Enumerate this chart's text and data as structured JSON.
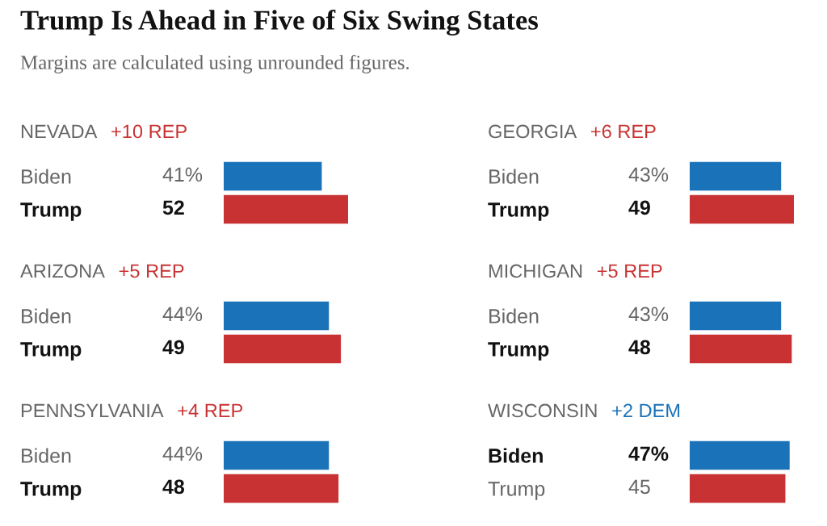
{
  "chart_data": [
    {
      "type": "other",
      "title": "Trump Is Ahead in Five of Six Swing States",
      "subtitle": "Margins are calculated using unrounded figures."
    },
    {
      "type": "bar",
      "orientation": "horizontal",
      "title": "NEVADA",
      "annotations": [
        "+10 REP"
      ],
      "categories": [
        "Biden",
        "Trump"
      ],
      "values": [
        41,
        52
      ],
      "value_labels": [
        "41%",
        "52"
      ],
      "colors": [
        "#1a72b8",
        "#c83232"
      ],
      "tick_labels": "y"
    },
    {
      "type": "bar",
      "orientation": "horizontal",
      "title": "GEORGIA",
      "annotations": [
        "+6 REP"
      ],
      "categories": [
        "Biden",
        "Trump"
      ],
      "values": [
        43,
        49
      ],
      "value_labels": [
        "43%",
        "49"
      ],
      "colors": [
        "#1a72b8",
        "#c83232"
      ],
      "tick_labels": "y"
    },
    {
      "type": "bar",
      "orientation": "horizontal",
      "title": "ARIZONA",
      "annotations": [
        "+5 REP"
      ],
      "categories": [
        "Biden",
        "Trump"
      ],
      "values": [
        44,
        49
      ],
      "value_labels": [
        "44%",
        "49"
      ],
      "colors": [
        "#1a72b8",
        "#c83232"
      ],
      "tick_labels": "y"
    },
    {
      "type": "bar",
      "orientation": "horizontal",
      "title": "MICHIGAN",
      "annotations": [
        "+5 REP"
      ],
      "categories": [
        "Biden",
        "Trump"
      ],
      "values": [
        43,
        48
      ],
      "value_labels": [
        "43%",
        "48"
      ],
      "colors": [
        "#1a72b8",
        "#c83232"
      ],
      "tick_labels": "y"
    },
    {
      "type": "bar",
      "orientation": "horizontal",
      "title": "PENNSYLVANIA",
      "annotations": [
        "+4 REP"
      ],
      "categories": [
        "Biden",
        "Trump"
      ],
      "values": [
        44,
        48
      ],
      "value_labels": [
        "44%",
        "48"
      ],
      "colors": [
        "#1a72b8",
        "#c83232"
      ],
      "tick_labels": "y"
    },
    {
      "type": "bar",
      "orientation": "horizontal",
      "title": "WISCONSIN",
      "annotations": [
        "+2 DEM"
      ],
      "categories": [
        "Biden",
        "Trump"
      ],
      "values": [
        47,
        45
      ],
      "value_labels": [
        "47%",
        "45"
      ],
      "colors": [
        "#1a72b8",
        "#c83232"
      ],
      "tick_labels": "y"
    }
  ]
}
